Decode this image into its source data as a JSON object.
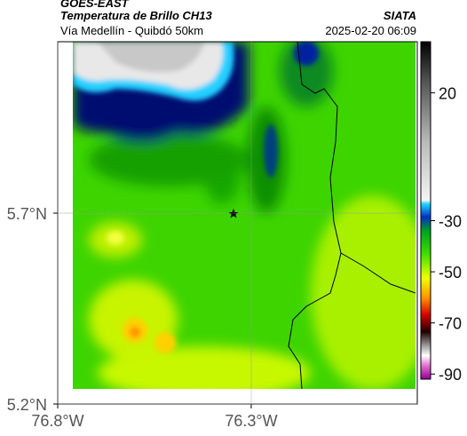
{
  "header": {
    "title": "GOES-EAST",
    "subtitle": "Temperatura de Brillo CH13",
    "location": "Vía Medellín - Quibdó 50km",
    "source": "SIATA",
    "datetime": "2025-02-20 06:09"
  },
  "map": {
    "xlim": [
      -76.8,
      -75.871
    ],
    "ylim": [
      5.2,
      6.149
    ],
    "xticks": [
      {
        "value": -76.8,
        "label": "76.8°W"
      },
      {
        "value": -76.3,
        "label": "76.3°W"
      }
    ],
    "yticks": [
      {
        "value": 5.2,
        "label": "5.2°N"
      },
      {
        "value": 5.7,
        "label": "5.7°N"
      }
    ]
  },
  "colorbar": {
    "clim": [
      -92,
      40
    ],
    "ticks": [
      20,
      -30,
      -50,
      -70,
      -90
    ]
  }
}
